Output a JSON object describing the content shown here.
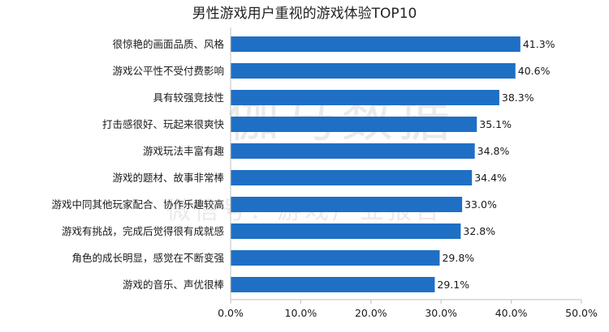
{
  "chart_data": {
    "type": "bar",
    "orientation": "horizontal",
    "title": "男性游戏用户重视的游戏体验TOP10",
    "categories": [
      "很惊艳的画面品质、风格",
      "游戏公平性不受付费影响",
      "具有较强竞技性",
      "打击感很好、玩起来很爽快",
      "游戏玩法丰富有趣",
      "游戏的题材、故事非常棒",
      "游戏中同其他玩家配合、协作乐趣较高",
      "游戏有挑战，完成后觉得很有成就感",
      "角色的成长明显，感觉在不断变强",
      "游戏的音乐、声优很棒"
    ],
    "values": [
      41.3,
      40.6,
      38.3,
      35.1,
      34.8,
      34.4,
      33.0,
      32.8,
      29.8,
      29.1
    ],
    "value_labels": [
      "41.3%",
      "40.6%",
      "38.3%",
      "35.1%",
      "34.8%",
      "34.4%",
      "33.0%",
      "32.8%",
      "29.8%",
      "29.1%"
    ],
    "xlim": [
      0,
      50
    ],
    "xticks": [
      0,
      10,
      20,
      30,
      40,
      50
    ],
    "xtick_labels": [
      "0.0%",
      "10.0%",
      "20.0%",
      "30.0%",
      "40.0%",
      "50.0%"
    ],
    "xlabel": "",
    "ylabel": "",
    "grid": false,
    "bar_color": "#1f6fc5",
    "axis_color": "#bfbfbf"
  },
  "watermark": {
    "main": "伽马数据",
    "sub": "微信号：游戏产业报告"
  }
}
